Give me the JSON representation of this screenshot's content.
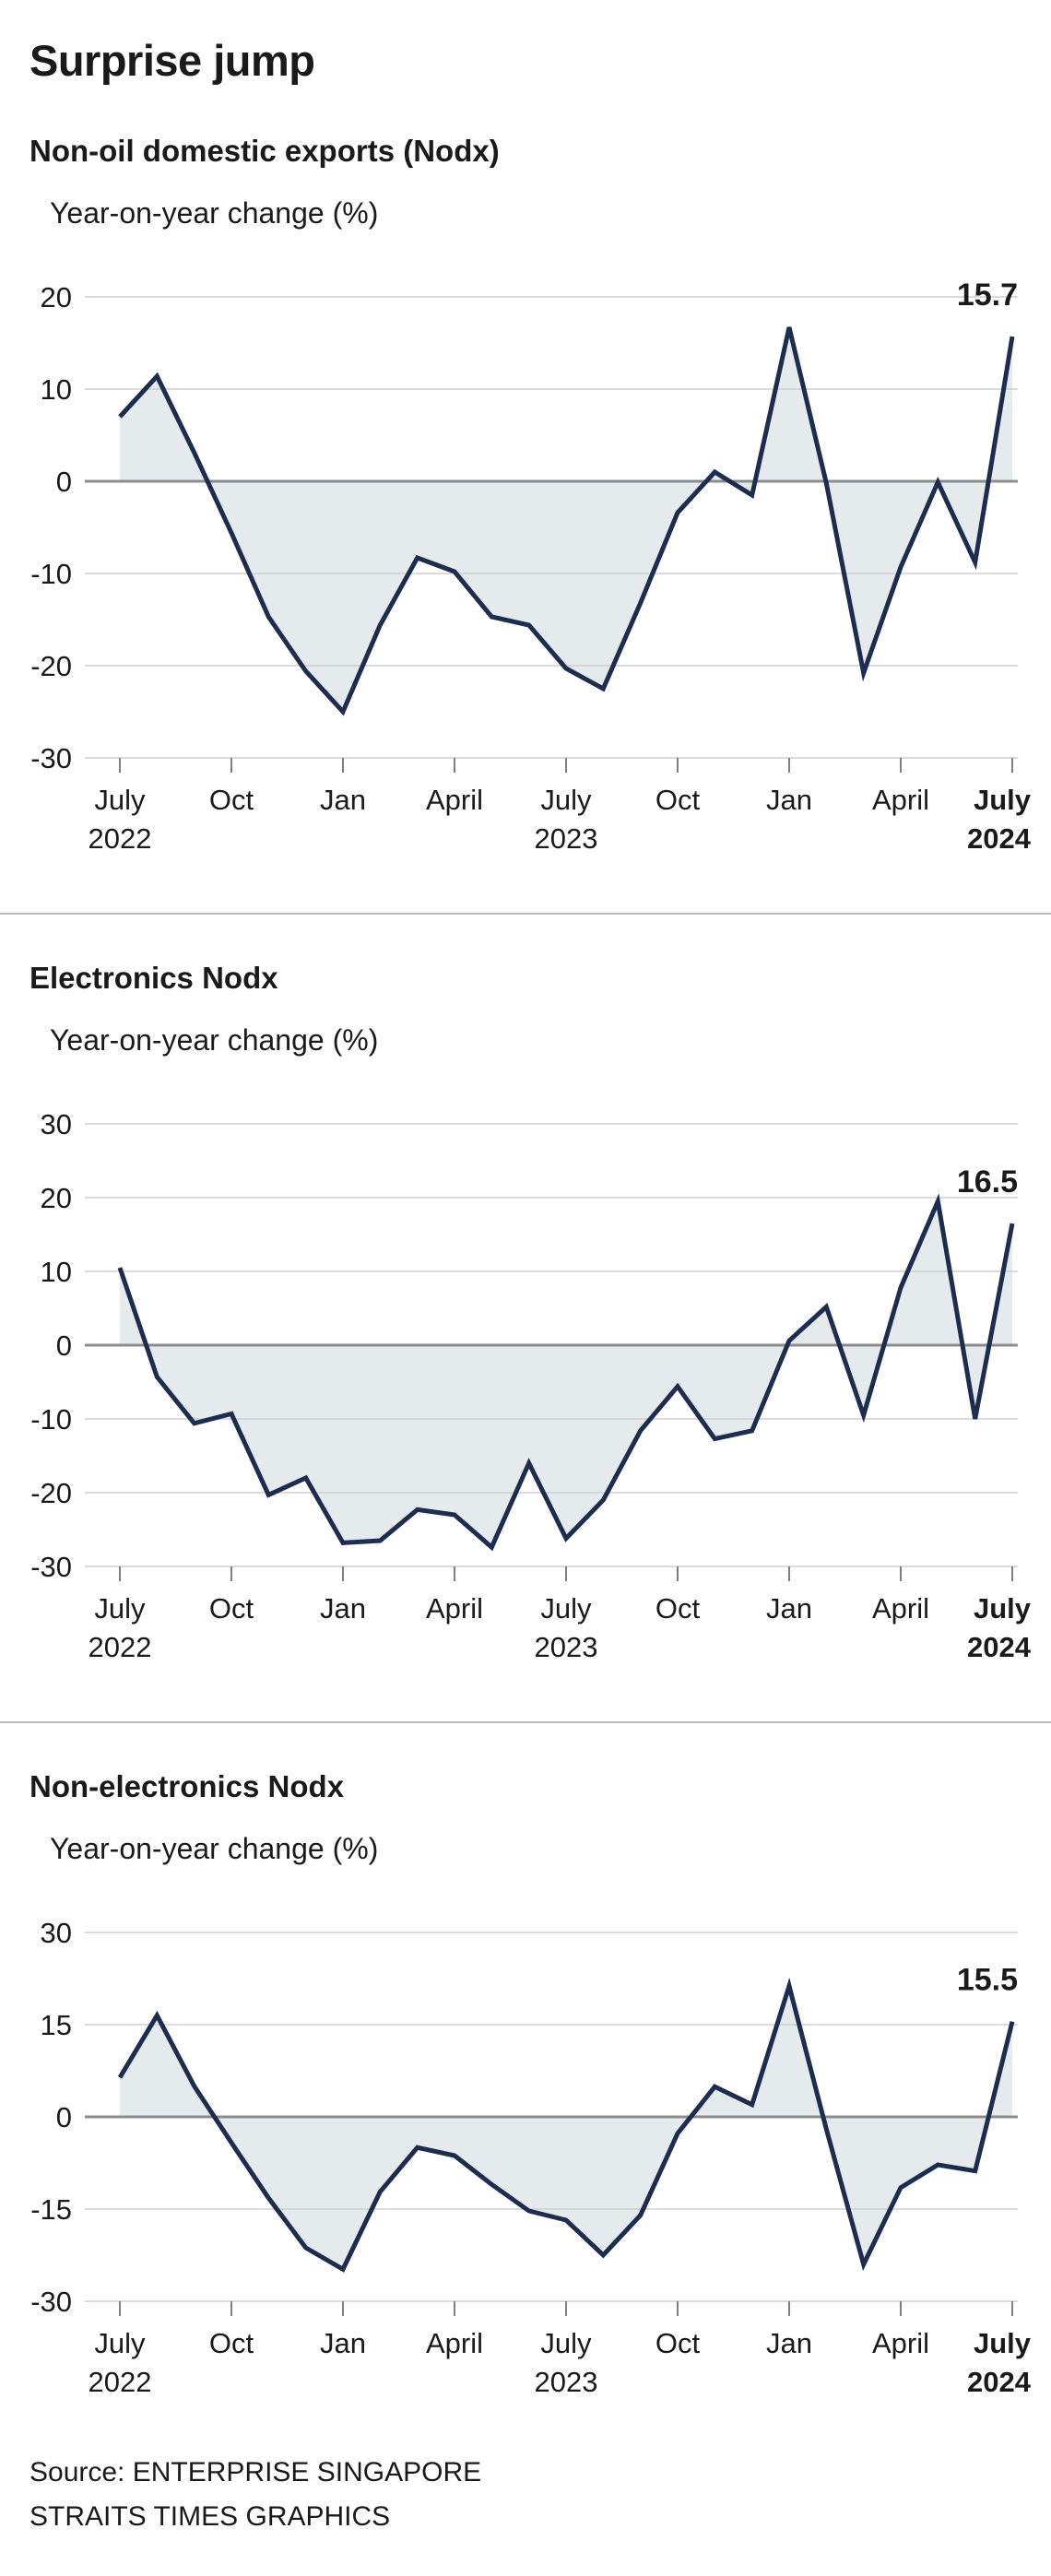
{
  "page": {
    "title": "Surprise jump",
    "source_line1": "Source: ENTERPRISE SINGAPORE",
    "source_line2": "STRAITS TIMES GRAPHICS"
  },
  "colors": {
    "line": "#1d2d50",
    "fill": "#e5ebed",
    "grid": "#cfcfcf",
    "zero_line": "#8c8c8c",
    "tick": "#7f7f7f",
    "text": "#1a1a1a"
  },
  "x_axis": {
    "months": [
      "Jul 2022",
      "Aug 2022",
      "Sep 2022",
      "Oct 2022",
      "Nov 2022",
      "Dec 2022",
      "Jan 2023",
      "Feb 2023",
      "Mar 2023",
      "Apr 2023",
      "May 2023",
      "Jun 2023",
      "Jul 2023",
      "Aug 2023",
      "Sep 2023",
      "Oct 2023",
      "Nov 2023",
      "Dec 2023",
      "Jan 2024",
      "Feb 2024",
      "Mar 2024",
      "Apr 2024",
      "May 2024",
      "Jun 2024",
      "Jul 2024"
    ],
    "ticks": [
      {
        "month_index": 0,
        "label": "July",
        "year": "2022"
      },
      {
        "month_index": 3,
        "label": "Oct"
      },
      {
        "month_index": 6,
        "label": "Jan"
      },
      {
        "month_index": 9,
        "label": "April"
      },
      {
        "month_index": 12,
        "label": "July",
        "year": "2023"
      },
      {
        "month_index": 15,
        "label": "Oct"
      },
      {
        "month_index": 18,
        "label": "Jan"
      },
      {
        "month_index": 21,
        "label": "April"
      },
      {
        "month_index": 24,
        "label": "July",
        "year": "2024"
      }
    ],
    "bold_month_index": 24
  },
  "chart_data": [
    {
      "type": "line",
      "name": "nodx-total-chart",
      "title": "Non-oil domestic exports (Nodx)",
      "ylabel": "Year-on-year change (%)",
      "end_label": "15.7",
      "ylim": [
        -30,
        20
      ],
      "yticks": [
        20,
        10,
        0,
        -10,
        -20,
        -30
      ],
      "values": [
        7.0,
        11.4,
        3.1,
        -5.6,
        -14.7,
        -20.6,
        -25.0,
        -15.6,
        -8.3,
        -9.8,
        -14.7,
        -15.6,
        -20.3,
        -22.5,
        -13.2,
        -3.4,
        1.0,
        -1.5,
        16.7,
        -0.2,
        -20.8,
        -9.3,
        -0.1,
        -8.8,
        15.7
      ]
    },
    {
      "type": "line",
      "name": "electronics-nodx-chart",
      "title": "Electronics Nodx",
      "ylabel": "Year-on-year change (%)",
      "end_label": "16.5",
      "ylim": [
        -30,
        30
      ],
      "yticks": [
        30,
        20,
        10,
        0,
        -10,
        -20,
        -30
      ],
      "values": [
        10.5,
        -4.3,
        -10.6,
        -9.3,
        -20.3,
        -18.0,
        -26.8,
        -26.5,
        -22.3,
        -23.0,
        -27.4,
        -16.0,
        -26.2,
        -21.0,
        -11.6,
        -5.6,
        -12.7,
        -11.6,
        0.6,
        5.2,
        -9.5,
        7.8,
        19.5,
        -10.0,
        16.5
      ]
    },
    {
      "type": "line",
      "name": "non-electronics-nodx-chart",
      "title": "Non-electronics Nodx",
      "ylabel": "Year-on-year change (%)",
      "end_label": "15.5",
      "ylim": [
        -30,
        30
      ],
      "yticks": [
        30,
        15,
        0,
        -15,
        -30
      ],
      "values": [
        6.4,
        16.5,
        5.0,
        -4.2,
        -13.2,
        -21.3,
        -24.8,
        -12.2,
        -5.0,
        -6.3,
        -11.0,
        -15.3,
        -16.8,
        -22.5,
        -16.0,
        -2.7,
        4.9,
        2.0,
        21.3,
        -2.0,
        -24.0,
        -11.5,
        -7.8,
        -8.8,
        15.5
      ]
    }
  ]
}
